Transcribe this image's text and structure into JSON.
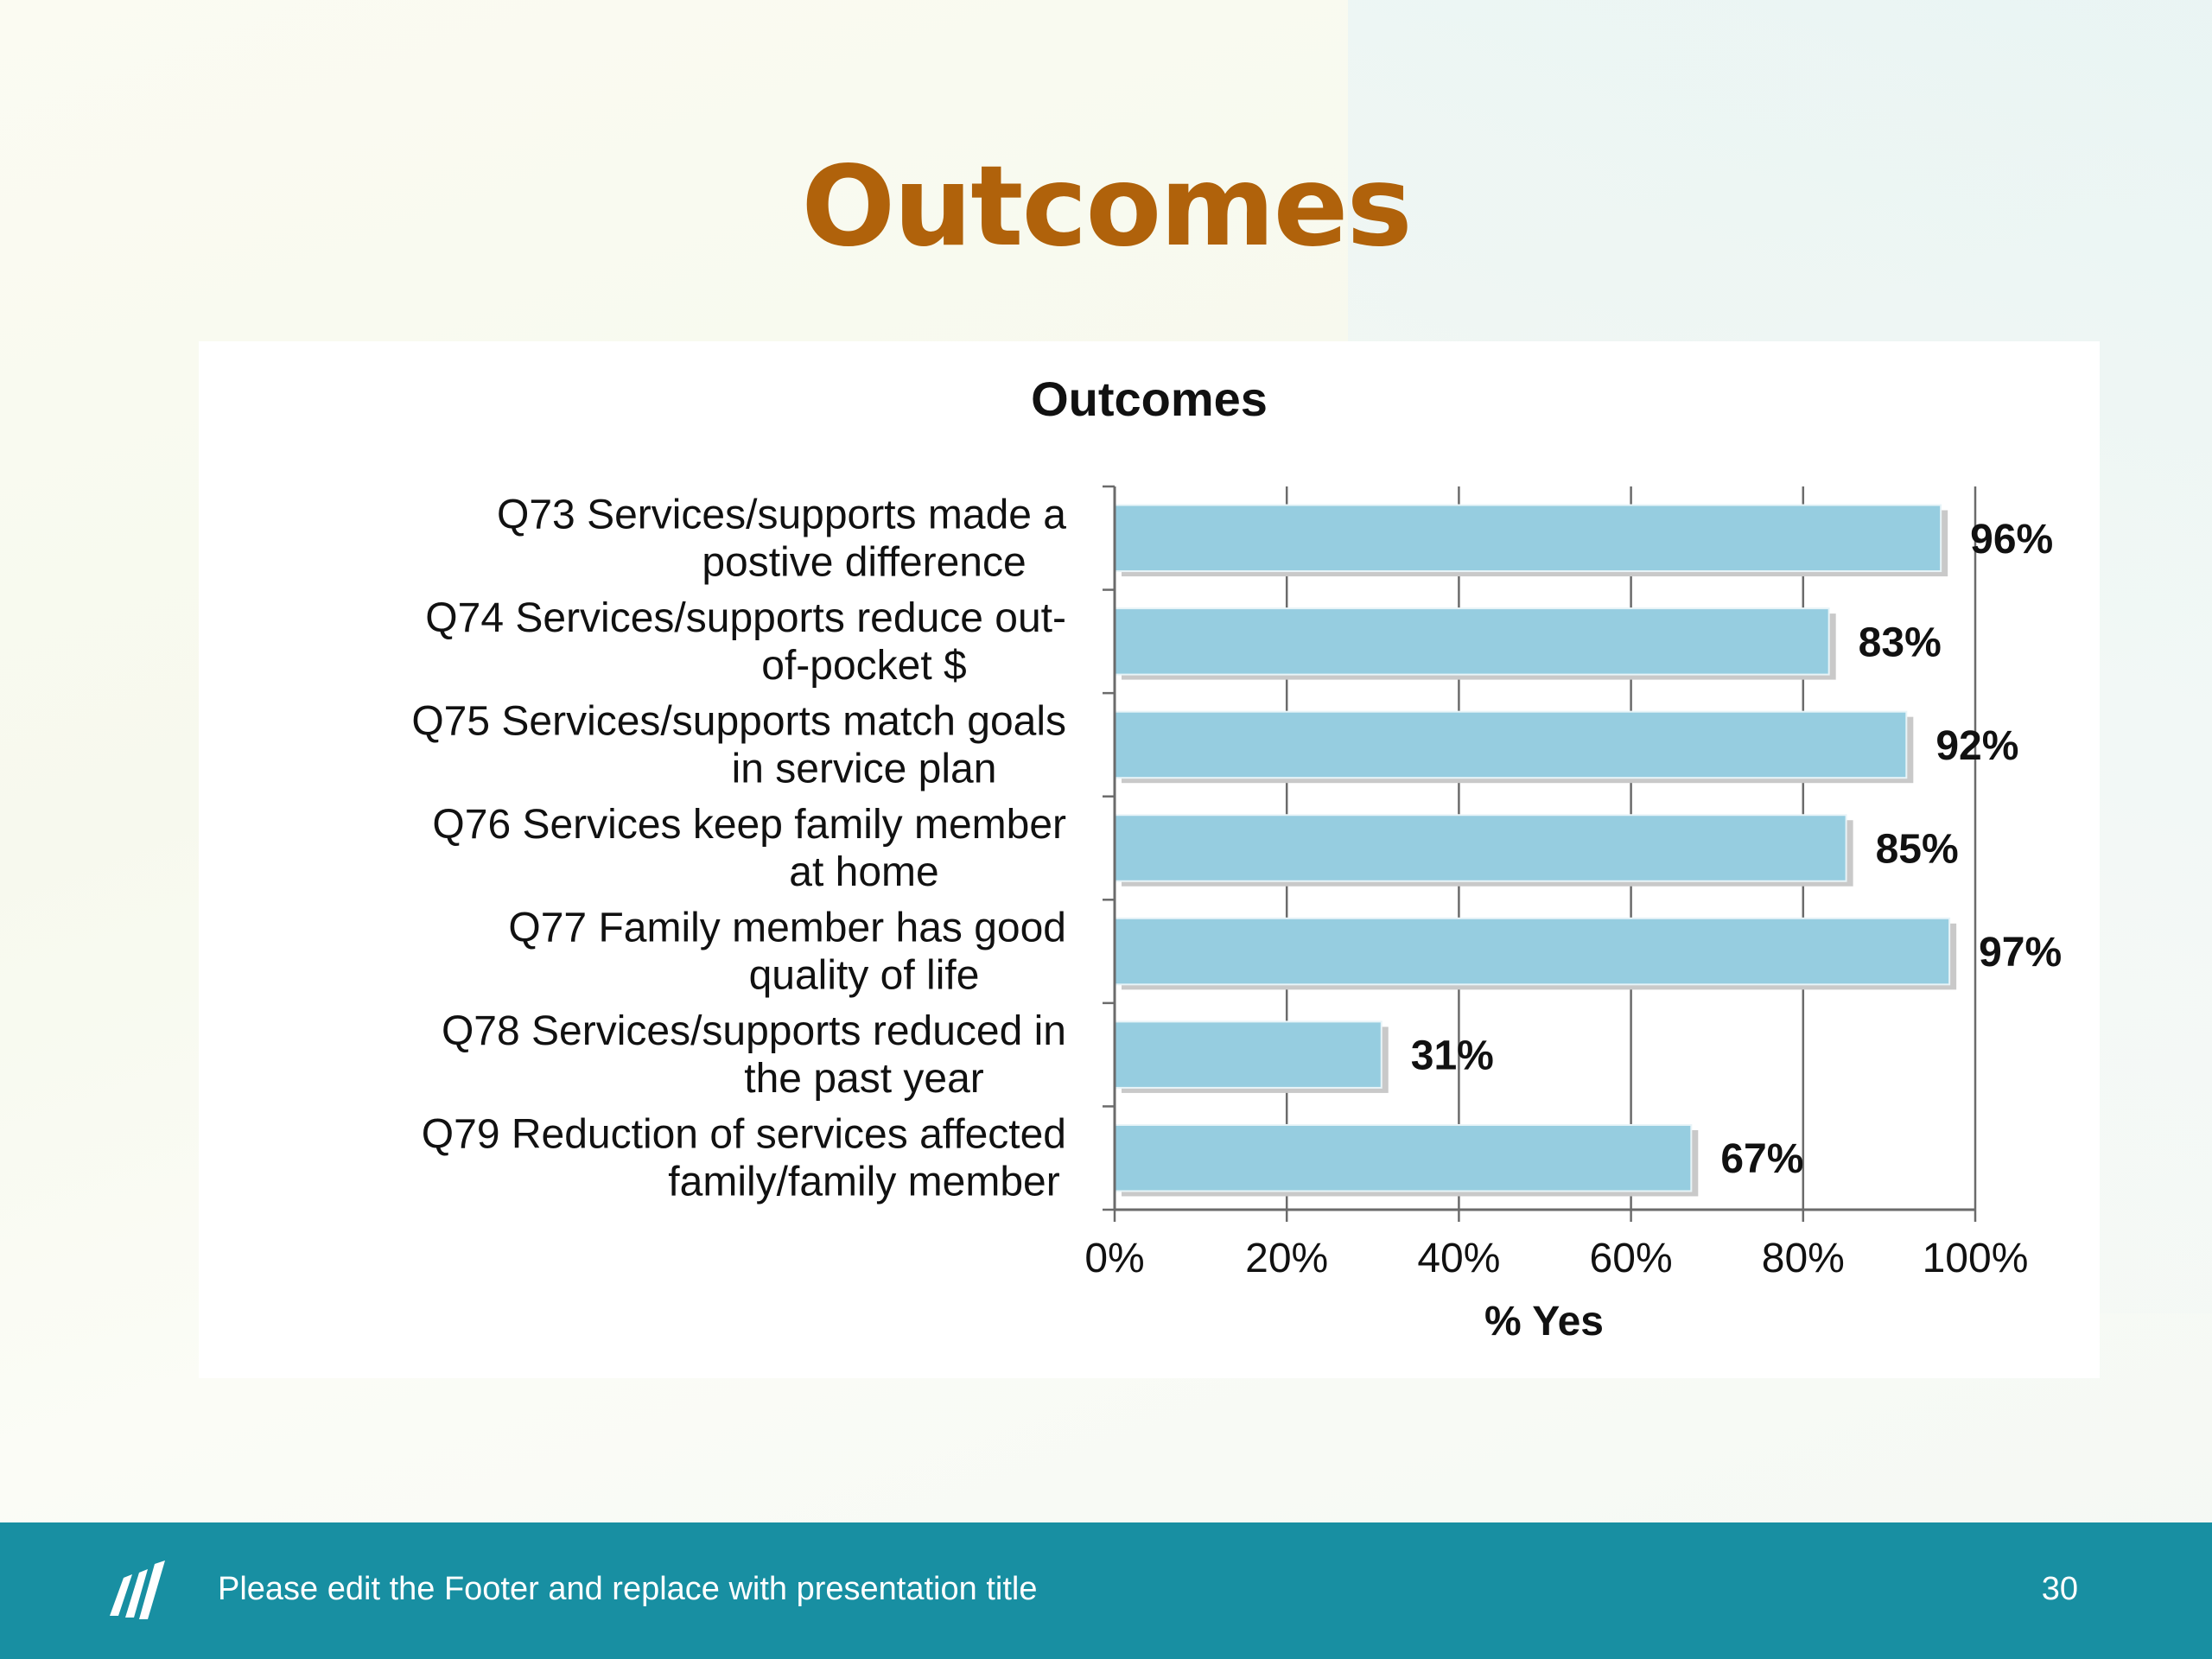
{
  "slide": {
    "title": "Outcomes",
    "footer_text": "Please edit the Footer and replace with presentation title",
    "page_number": "30",
    "logo_icon": "stripes-logo-icon"
  },
  "colors": {
    "title": "#b0620b",
    "bar": "#96cde0",
    "footer_bg": "#188fa2"
  },
  "chart_data": {
    "type": "bar",
    "orientation": "horizontal",
    "title": "Outcomes",
    "xlabel": "% Yes",
    "ylabel": "",
    "xlim": [
      0,
      100
    ],
    "x_ticks": [
      "0%",
      "20%",
      "40%",
      "60%",
      "80%",
      "100%"
    ],
    "grid": "vertical",
    "legend": "none",
    "categories": [
      [
        "Q73 Services/supports made a",
        "postive difference"
      ],
      [
        "Q74 Services/supports reduce out-",
        "of-pocket $"
      ],
      [
        "Q75 Services/supports match goals",
        "in service plan"
      ],
      [
        "Q76 Services keep family member",
        "at home"
      ],
      [
        "Q77 Family member has  good",
        "quality of life"
      ],
      [
        "Q78 Services/supports reduced in",
        "the past year"
      ],
      [
        "Q79 Reduction of services affected",
        "family/family member"
      ]
    ],
    "values": [
      96,
      83,
      92,
      85,
      97,
      31,
      67
    ],
    "data_labels": [
      "96%",
      "83%",
      "92%",
      "85%",
      "97%",
      "31%",
      "67%"
    ]
  }
}
